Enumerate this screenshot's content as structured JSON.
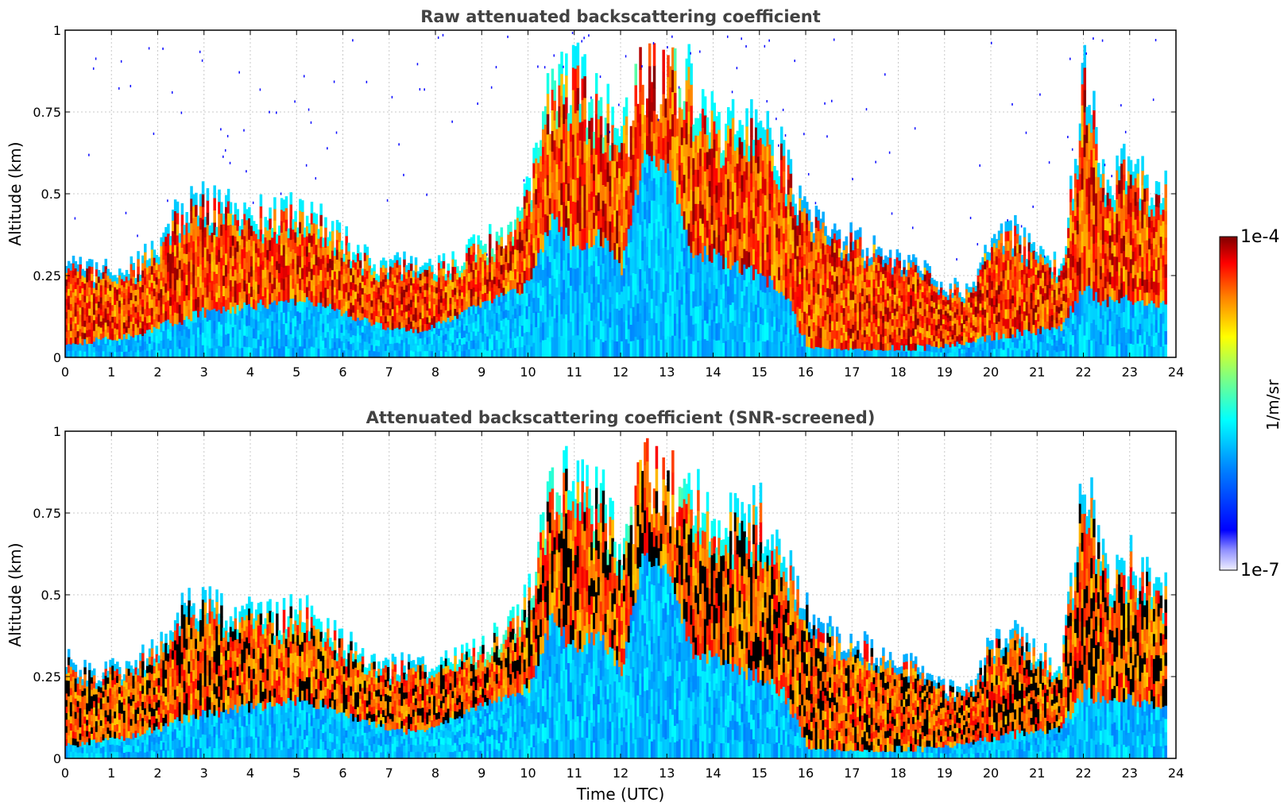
{
  "chart_data": [
    {
      "type": "heatmap",
      "title": "Raw attenuated backscattering coefficient",
      "xlabel": "",
      "ylabel": "Altitude (km)",
      "xlim": [
        0,
        24
      ],
      "ylim": [
        0,
        1
      ],
      "xticks": [
        "0",
        "1",
        "2",
        "3",
        "4",
        "5",
        "6",
        "7",
        "8",
        "9",
        "10",
        "11",
        "12",
        "13",
        "14",
        "15",
        "16",
        "17",
        "18",
        "19",
        "20",
        "21",
        "22",
        "23",
        "24"
      ],
      "yticks": [
        "0",
        "0.25",
        "0.5",
        "0.75",
        "1"
      ],
      "grid": true,
      "colorscale": "jet",
      "screened": false,
      "data_end_hour": 23.8,
      "x": [
        0,
        0.5,
        1,
        1.5,
        2,
        2.5,
        3,
        3.5,
        4,
        4.5,
        5,
        5.5,
        6,
        6.5,
        7,
        7.5,
        8,
        8.5,
        9,
        9.5,
        10,
        10.5,
        11,
        11.5,
        12,
        12.5,
        13,
        13.5,
        14,
        14.5,
        15,
        15.5,
        16,
        16.5,
        17,
        17.5,
        18,
        18.5,
        19,
        19.5,
        20,
        20.5,
        21,
        21.5,
        22,
        22.5,
        23,
        23.5
      ],
      "layer_top_km": [
        0.3,
        0.27,
        0.27,
        0.28,
        0.36,
        0.45,
        0.48,
        0.45,
        0.44,
        0.43,
        0.45,
        0.42,
        0.36,
        0.3,
        0.28,
        0.29,
        0.28,
        0.3,
        0.35,
        0.38,
        0.5,
        0.82,
        0.85,
        0.8,
        0.65,
        0.87,
        0.82,
        0.85,
        0.7,
        0.72,
        0.75,
        0.6,
        0.45,
        0.38,
        0.36,
        0.33,
        0.3,
        0.28,
        0.22,
        0.21,
        0.35,
        0.38,
        0.32,
        0.28,
        0.85,
        0.55,
        0.6,
        0.52
      ],
      "layer_base_km": [
        0.03,
        0.04,
        0.05,
        0.06,
        0.08,
        0.1,
        0.12,
        0.13,
        0.14,
        0.15,
        0.16,
        0.15,
        0.12,
        0.1,
        0.08,
        0.07,
        0.09,
        0.12,
        0.15,
        0.18,
        0.2,
        0.4,
        0.3,
        0.35,
        0.25,
        0.6,
        0.55,
        0.3,
        0.28,
        0.25,
        0.22,
        0.18,
        0.03,
        0.02,
        0.02,
        0.02,
        0.02,
        0.02,
        0.03,
        0.04,
        0.05,
        0.06,
        0.07,
        0.08,
        0.18,
        0.15,
        0.16,
        0.15
      ]
    },
    {
      "type": "heatmap",
      "title": "Attenuated backscattering coefficient (SNR-screened)",
      "xlabel": "Time (UTC)",
      "ylabel": "Altitude (km)",
      "xlim": [
        0,
        24
      ],
      "ylim": [
        0,
        1
      ],
      "xticks": [
        "0",
        "1",
        "2",
        "3",
        "4",
        "5",
        "6",
        "7",
        "8",
        "9",
        "10",
        "11",
        "12",
        "13",
        "14",
        "15",
        "16",
        "17",
        "18",
        "19",
        "20",
        "21",
        "22",
        "23",
        "24"
      ],
      "yticks": [
        "0",
        "0.25",
        "0.5",
        "0.75",
        "1"
      ],
      "grid": true,
      "colorscale": "jet",
      "screened": true,
      "data_end_hour": 23.8,
      "x": [
        0,
        0.5,
        1,
        1.5,
        2,
        2.5,
        3,
        3.5,
        4,
        4.5,
        5,
        5.5,
        6,
        6.5,
        7,
        7.5,
        8,
        8.5,
        9,
        9.5,
        10,
        10.5,
        11,
        11.5,
        12,
        12.5,
        13,
        13.5,
        14,
        14.5,
        15,
        15.5,
        16,
        16.5,
        17,
        17.5,
        18,
        18.5,
        19,
        19.5,
        20,
        20.5,
        21,
        21.5,
        22,
        22.5,
        23,
        23.5
      ],
      "layer_top_km": [
        0.3,
        0.27,
        0.27,
        0.28,
        0.36,
        0.45,
        0.48,
        0.45,
        0.44,
        0.43,
        0.45,
        0.42,
        0.36,
        0.3,
        0.28,
        0.29,
        0.28,
        0.3,
        0.35,
        0.38,
        0.5,
        0.82,
        0.85,
        0.8,
        0.65,
        0.87,
        0.82,
        0.85,
        0.7,
        0.72,
        0.75,
        0.6,
        0.45,
        0.38,
        0.36,
        0.33,
        0.3,
        0.28,
        0.22,
        0.21,
        0.35,
        0.38,
        0.32,
        0.28,
        0.85,
        0.55,
        0.6,
        0.52
      ],
      "layer_base_km": [
        0.03,
        0.04,
        0.05,
        0.06,
        0.08,
        0.1,
        0.12,
        0.13,
        0.14,
        0.15,
        0.16,
        0.15,
        0.12,
        0.1,
        0.08,
        0.07,
        0.09,
        0.12,
        0.15,
        0.18,
        0.2,
        0.4,
        0.3,
        0.35,
        0.25,
        0.6,
        0.55,
        0.3,
        0.28,
        0.25,
        0.22,
        0.18,
        0.03,
        0.02,
        0.02,
        0.02,
        0.02,
        0.02,
        0.03,
        0.04,
        0.05,
        0.06,
        0.07,
        0.08,
        0.18,
        0.15,
        0.16,
        0.15
      ]
    }
  ],
  "colorbar": {
    "max_label": "1e-4",
    "min_label": "1e-7",
    "unit_label": "1/m/sr",
    "colors": [
      "#0000aa",
      "#0000ff",
      "#0080ff",
      "#00ffff",
      "#80ff80",
      "#ffff00",
      "#ff8000",
      "#ff0000",
      "#800000"
    ]
  }
}
